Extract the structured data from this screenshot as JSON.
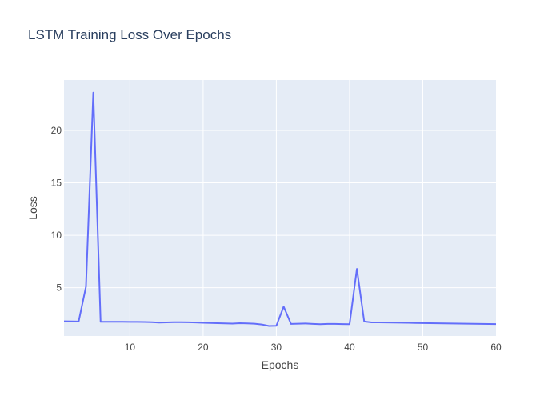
{
  "chart_data": {
    "type": "line",
    "title": "LSTM Training Loss Over Epochs",
    "xlabel": "Epochs",
    "ylabel": "Loss",
    "xlim": [
      1,
      60
    ],
    "ylim": [
      0.4,
      24.8
    ],
    "xticks": [
      10,
      20,
      30,
      40,
      50,
      60
    ],
    "yticks": [
      5,
      10,
      15,
      20
    ],
    "grid": true,
    "legend": "none",
    "colors": {
      "line": "#636efa",
      "plot_background": "#e5ecf6",
      "grid": "#ffffff",
      "title": "#2a3f5f",
      "text": "#444444"
    },
    "series": [
      {
        "x": [
          1,
          2,
          3,
          4,
          5,
          6,
          7,
          8,
          9,
          10,
          11,
          12,
          13,
          14,
          15,
          16,
          17,
          18,
          19,
          20,
          21,
          22,
          23,
          24,
          25,
          26,
          27,
          28,
          29,
          30,
          31,
          32,
          33,
          34,
          35,
          36,
          37,
          38,
          39,
          40,
          41,
          42,
          43,
          44,
          45,
          46,
          47,
          48,
          49,
          50,
          51,
          52,
          53,
          54,
          55,
          56,
          57,
          58,
          59,
          60
        ],
        "values": [
          1.8,
          1.79,
          1.78,
          5.1,
          23.6,
          1.75,
          1.75,
          1.75,
          1.75,
          1.74,
          1.74,
          1.73,
          1.72,
          1.68,
          1.7,
          1.72,
          1.72,
          1.71,
          1.69,
          1.66,
          1.64,
          1.62,
          1.6,
          1.58,
          1.62,
          1.6,
          1.57,
          1.5,
          1.35,
          1.37,
          3.2,
          1.55,
          1.57,
          1.59,
          1.55,
          1.52,
          1.55,
          1.55,
          1.53,
          1.52,
          6.8,
          1.78,
          1.7,
          1.7,
          1.69,
          1.68,
          1.67,
          1.66,
          1.64,
          1.63,
          1.62,
          1.61,
          1.6,
          1.59,
          1.58,
          1.57,
          1.56,
          1.55,
          1.54,
          1.53
        ]
      }
    ]
  }
}
